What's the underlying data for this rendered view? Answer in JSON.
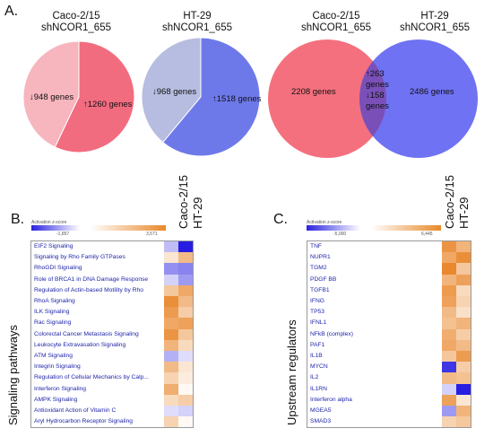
{
  "panels": {
    "A": {
      "letter": "A."
    },
    "B": {
      "letter": "B."
    },
    "C": {
      "letter": "C."
    }
  },
  "pies": [
    {
      "title_line1": "Caco-2/15",
      "title_line2": "shNCOR1_655",
      "down": {
        "label": "↓948 genes",
        "value": 948,
        "color": "#f7b5be"
      },
      "up": {
        "label": "↑1260 genes",
        "value": 1260,
        "color": "#f26c80"
      }
    },
    {
      "title_line1": "HT-29",
      "title_line2": "shNCOR1_655",
      "down": {
        "label": "↓968 genes",
        "value": 968,
        "color": "#b7bde0"
      },
      "up": {
        "label": "↑1518 genes",
        "value": 1518,
        "color": "#6e79e9"
      }
    }
  ],
  "venn": {
    "left_title_line1": "Caco-2/15",
    "left_title_line2": "shNCOR1_655",
    "right_title_line1": "HT-29",
    "right_title_line2": "shNCOR1_655",
    "left_only": "2208 genes",
    "right_only": "2486 genes",
    "overlap_up": "↑263",
    "overlap_genes1": "genes",
    "overlap_down": "↓158",
    "overlap_genes2": "genes",
    "left_color": "#f4707e",
    "right_color": "#6f72f2",
    "overlap_color": "#7a50b8"
  },
  "heatmaps": {
    "B": {
      "ylabel": "Signaling pathways",
      "col1": "Caco-2/15",
      "col2": "HT-29",
      "scale_title": "Activation z-score",
      "scale_min": "-1,857",
      "scale_max": "3,571",
      "rows": [
        {
          "label": "EIF2 Signaling",
          "c1": -0.3,
          "c2": -1.0
        },
        {
          "label": "Signaling by Rho Family GTPases",
          "c1": 0.2,
          "c2": 0.55
        },
        {
          "label": "RhoGDI Signaling",
          "c1": -0.5,
          "c2": -0.55
        },
        {
          "label": "Role of BRCA1 in DNA Damage Response",
          "c1": -0.2,
          "c2": -0.45
        },
        {
          "label": "Regulation of Actin-based Motility by Rho",
          "c1": 0.45,
          "c2": 0.7
        },
        {
          "label": "RhoA Signaling",
          "c1": 0.9,
          "c2": 0.55
        },
        {
          "label": "ILK Signaling",
          "c1": 0.8,
          "c2": 0.4
        },
        {
          "label": "Rac Signaling",
          "c1": 0.7,
          "c2": 0.75
        },
        {
          "label": "Colorectal Cancer Metastasis Signaling",
          "c1": 0.85,
          "c2": 0.45
        },
        {
          "label": "Leukocyte Extravasation Signaling",
          "c1": 0.6,
          "c2": 0.3
        },
        {
          "label": "ATM Signaling",
          "c1": -0.35,
          "c2": -0.15
        },
        {
          "label": "Integrin Signaling",
          "c1": 0.55,
          "c2": 0.2
        },
        {
          "label": "Regulation of Cellular Mechanics by Calp...",
          "c1": 0.35,
          "c2": 0.15
        },
        {
          "label": "Interferon Signaling",
          "c1": 0.65,
          "c2": 0.05
        },
        {
          "label": "AMPK Signaling",
          "c1": 0.3,
          "c2": 0.4
        },
        {
          "label": "Antioxidant Action of Vitamin C",
          "c1": -0.15,
          "c2": -0.2
        },
        {
          "label": "Aryl Hydrocarbon Receptor Signaling",
          "c1": 0.35,
          "c2": 0.05
        }
      ]
    },
    "C": {
      "ylabel": "Upstream regulators",
      "col1": "Caco-2/15",
      "col2": "HT-29",
      "scale_title": "Activation z-score",
      "scale_min": "-5,000",
      "scale_max": "6,445",
      "rows": [
        {
          "label": "TNF",
          "c1": 0.85,
          "c2": 0.6
        },
        {
          "label": "NUPR1",
          "c1": 0.7,
          "c2": 0.9
        },
        {
          "label": "TGM2",
          "c1": 0.95,
          "c2": 0.45
        },
        {
          "label": "PDGF BB",
          "c1": 0.6,
          "c2": 0.75
        },
        {
          "label": "TGFB1",
          "c1": 0.8,
          "c2": 0.3
        },
        {
          "label": "IFNG",
          "c1": 0.75,
          "c2": 0.35
        },
        {
          "label": "TP53",
          "c1": 0.55,
          "c2": 0.25
        },
        {
          "label": "IFNL1",
          "c1": 0.5,
          "c2": 0.6
        },
        {
          "label": "NFkB (complex)",
          "c1": 0.65,
          "c2": 0.4
        },
        {
          "label": "PAF1",
          "c1": 0.7,
          "c2": 0.55
        },
        {
          "label": "IL1B",
          "c1": 0.45,
          "c2": 0.8
        },
        {
          "label": "MYCN",
          "c1": -0.9,
          "c2": 0.4
        },
        {
          "label": "IL2",
          "c1": 0.55,
          "c2": 0.5
        },
        {
          "label": "IL1RN",
          "c1": -0.2,
          "c2": -1.0
        },
        {
          "label": "Interferon alpha",
          "c1": 0.75,
          "c2": 0.2
        },
        {
          "label": "MGEA5",
          "c1": -0.45,
          "c2": 0.6
        },
        {
          "label": "SMAD3",
          "c1": 0.35,
          "c2": 0.45
        }
      ]
    }
  }
}
